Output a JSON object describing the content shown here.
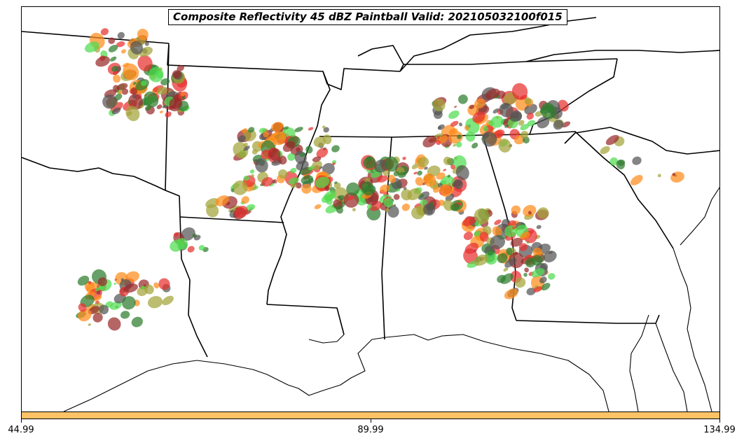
{
  "title": "Composite Reflectivity 45 dBZ Paintball Valid: 202105032100f015",
  "colorbar": {
    "color": "#ffc266",
    "ticks": [
      "44.99",
      "89.99",
      "134.99"
    ]
  },
  "member_colors": [
    "#e8312f",
    "#9a2a2a",
    "#2e7d2e",
    "#4fdc4f",
    "#a3a33a",
    "#ff8c1a",
    "#555555"
  ]
}
